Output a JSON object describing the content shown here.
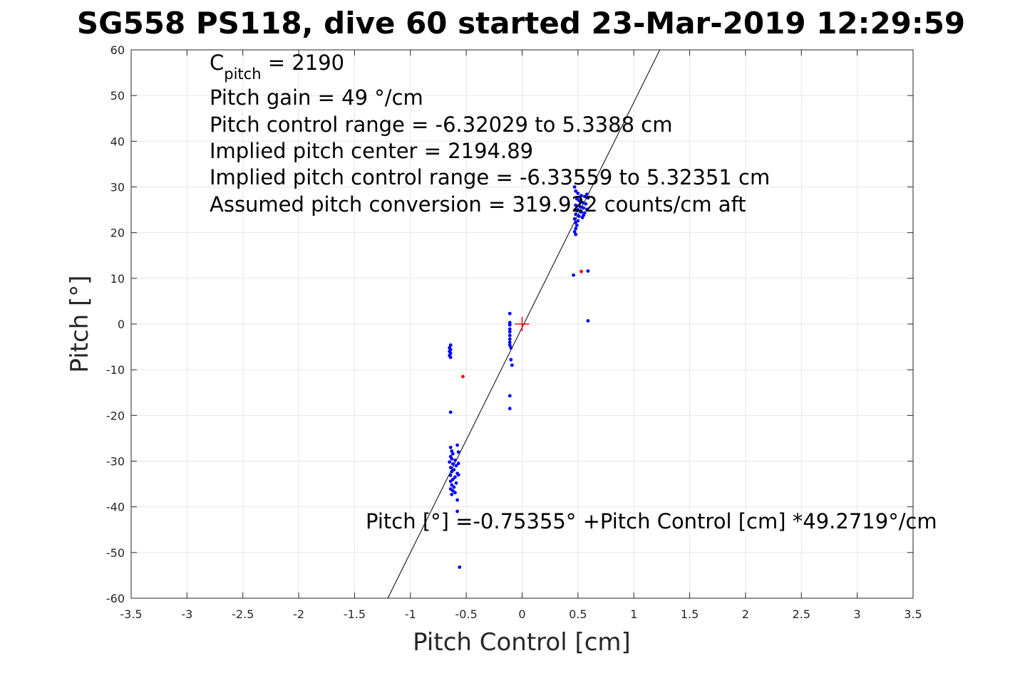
{
  "chart_data": {
    "type": "scatter",
    "title": "SG558 PS118, dive 60 started 23-Mar-2019 12:29:59",
    "xlabel": "Pitch Control [cm]",
    "ylabel": "Pitch [°]",
    "xlim": [
      -3.5,
      3.5
    ],
    "ylim": [
      -60,
      60
    ],
    "xticks": [
      -3.5,
      -3,
      -2.5,
      -2,
      -1.5,
      -1,
      -0.5,
      0,
      0.5,
      1,
      1.5,
      2,
      2.5,
      3,
      3.5
    ],
    "xtick_labels": [
      "-3.5",
      "-3",
      "-2.5",
      "-2",
      "-1.5",
      "-1",
      "-0.5",
      "0",
      "0.5",
      "1",
      "1.5",
      "2",
      "2.5",
      "3",
      "3.5"
    ],
    "yticks": [
      -60,
      -50,
      -40,
      -30,
      -20,
      -10,
      0,
      10,
      20,
      30,
      40,
      50,
      60
    ],
    "ytick_labels": [
      "-60",
      "-50",
      "-40",
      "-30",
      "-20",
      "-10",
      "0",
      "10",
      "20",
      "30",
      "40",
      "50",
      "60"
    ],
    "grid": true,
    "colors": {
      "valid_points": "#0000ff",
      "flagged_points": "#ff0000",
      "fit_line": "#000000",
      "center_marker": "#ff0000",
      "grid": "#e6e6e6"
    },
    "fit_line": {
      "intercept": -0.75355,
      "slope": 49.2719
    },
    "center_marker": {
      "x": 0,
      "y": 0
    },
    "series": [
      {
        "color": "#0000ff",
        "points": [
          [
            -0.64,
            -4.6
          ],
          [
            -0.65,
            -5.2
          ],
          [
            -0.64,
            -5.6
          ],
          [
            -0.65,
            -6.0
          ],
          [
            -0.64,
            -6.4
          ],
          [
            -0.65,
            -6.9
          ],
          [
            -0.64,
            -7.3
          ],
          [
            -0.64,
            -19.3
          ],
          [
            -0.64,
            -27.0
          ],
          [
            -0.63,
            -27.8
          ],
          [
            -0.62,
            -28.4
          ],
          [
            -0.64,
            -29.0
          ],
          [
            -0.63,
            -29.5
          ],
          [
            -0.6,
            -29.8
          ],
          [
            -0.65,
            -30.2
          ],
          [
            -0.62,
            -30.6
          ],
          [
            -0.59,
            -31.0
          ],
          [
            -0.64,
            -31.4
          ],
          [
            -0.61,
            -31.9
          ],
          [
            -0.63,
            -32.3
          ],
          [
            -0.58,
            -32.7
          ],
          [
            -0.64,
            -33.1
          ],
          [
            -0.6,
            -33.5
          ],
          [
            -0.62,
            -34.0
          ],
          [
            -0.64,
            -34.4
          ],
          [
            -0.59,
            -34.8
          ],
          [
            -0.63,
            -35.2
          ],
          [
            -0.61,
            -35.7
          ],
          [
            -0.64,
            -36.1
          ],
          [
            -0.62,
            -36.5
          ],
          [
            -0.6,
            -36.9
          ],
          [
            -0.63,
            -37.3
          ],
          [
            -0.58,
            -38.5
          ],
          [
            -0.58,
            -41.0
          ],
          [
            -0.57,
            -28.0
          ],
          [
            -0.57,
            -30.5
          ],
          [
            -0.57,
            -33.0
          ],
          [
            -0.58,
            -26.5
          ],
          [
            -0.56,
            -53.2
          ],
          [
            -0.11,
            2.3
          ],
          [
            -0.11,
            0.3
          ],
          [
            -0.11,
            -0.2
          ],
          [
            -0.11,
            -1.1
          ],
          [
            -0.11,
            -1.7
          ],
          [
            -0.11,
            -2.5
          ],
          [
            -0.11,
            -3.3
          ],
          [
            -0.11,
            -4.0
          ],
          [
            -0.11,
            -4.6
          ],
          [
            -0.1,
            -5.2
          ],
          [
            -0.1,
            -7.8
          ],
          [
            -0.09,
            -9.0
          ],
          [
            -0.11,
            -15.7
          ],
          [
            -0.11,
            -18.5
          ],
          [
            0.47,
            30.0
          ],
          [
            0.48,
            29.1
          ],
          [
            0.5,
            28.6
          ],
          [
            0.53,
            28.1
          ],
          [
            0.56,
            27.9
          ],
          [
            0.58,
            28.4
          ],
          [
            0.59,
            27.6
          ],
          [
            0.49,
            27.4
          ],
          [
            0.51,
            27.0
          ],
          [
            0.54,
            26.6
          ],
          [
            0.57,
            26.3
          ],
          [
            0.48,
            26.0
          ],
          [
            0.52,
            25.7
          ],
          [
            0.55,
            25.4
          ],
          [
            0.58,
            25.1
          ],
          [
            0.49,
            24.8
          ],
          [
            0.53,
            24.5
          ],
          [
            0.56,
            24.3
          ],
          [
            0.48,
            24.0
          ],
          [
            0.51,
            23.6
          ],
          [
            0.54,
            23.3
          ],
          [
            0.47,
            23.0
          ],
          [
            0.5,
            22.6
          ],
          [
            0.48,
            22.2
          ],
          [
            0.49,
            21.6
          ],
          [
            0.48,
            20.9
          ],
          [
            0.47,
            20.2
          ],
          [
            0.48,
            19.6
          ],
          [
            0.55,
            23.8
          ],
          [
            0.52,
            27.8
          ],
          [
            0.5,
            25.0
          ],
          [
            0.46,
            10.7
          ],
          [
            0.59,
            11.6
          ],
          [
            0.59,
            0.7
          ]
        ]
      },
      {
        "color": "#ff0000",
        "points": [
          [
            0.53,
            11.5
          ],
          [
            -0.53,
            -11.5
          ]
        ]
      }
    ]
  },
  "annotations": {
    "cpitch_base": "C",
    "cpitch_sub": "pitch",
    "cpitch_value": " = 2190",
    "line_gain": "Pitch gain = 49 °/cm",
    "line_range": "Pitch control range = -6.32029 to 5.3388 cm",
    "line_center": "Implied pitch center = 2194.89",
    "line_implied_range": "Implied pitch control range = -6.33559 to 5.32351 cm",
    "line_conversion": "Assumed pitch conversion = 319.922 counts/cm aft",
    "fit_equation": "Pitch [°] =-0.75355° +Pitch Control [cm] *49.2719°/cm"
  }
}
